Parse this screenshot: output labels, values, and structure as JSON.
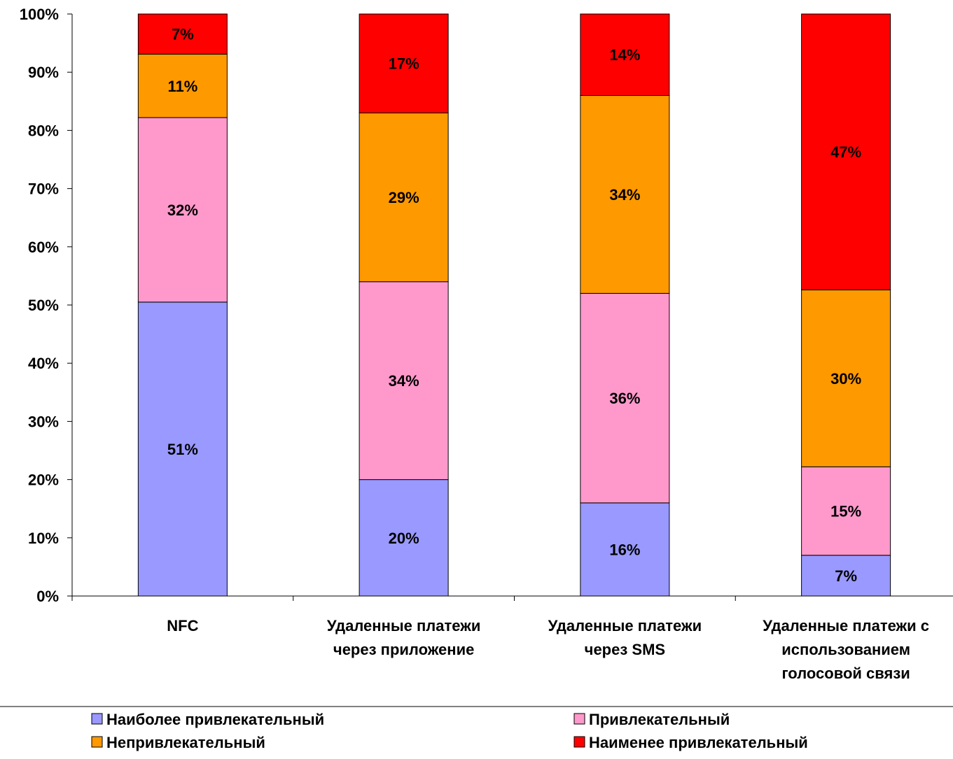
{
  "chart_data": {
    "type": "bar",
    "stacked": true,
    "percent": true,
    "categories": [
      [
        "NFC"
      ],
      [
        "Удаленные платежи",
        "через приложение"
      ],
      [
        "Удаленные платежи",
        "через SMS"
      ],
      [
        "Удаленные платежи с",
        "использованием",
        "голосовой связи"
      ]
    ],
    "series": [
      {
        "name": "Наиболее привлекательный",
        "color": "#9999ff",
        "values": [
          50.5,
          20,
          16,
          7
        ],
        "labels": [
          "51%",
          "20%",
          "16%",
          "7%"
        ]
      },
      {
        "name": "Привлекательный",
        "color": "#ff99cc",
        "values": [
          31.7,
          34,
          36,
          15.2
        ],
        "labels": [
          "32%",
          "34%",
          "36%",
          "15%"
        ]
      },
      {
        "name": "Непривлекательный",
        "color": "#ff9900",
        "values": [
          10.9,
          29,
          34,
          30.4
        ],
        "labels": [
          "11%",
          "29%",
          "34%",
          "30%"
        ]
      },
      {
        "name": "Наименее привлекательный",
        "color": "#ff0000",
        "values": [
          6.9,
          17,
          14,
          47.4
        ],
        "labels": [
          "7%",
          "17%",
          "14%",
          "47%"
        ]
      }
    ],
    "ylim": [
      0,
      100
    ],
    "yticks": [
      "0%",
      "10%",
      "20%",
      "30%",
      "40%",
      "50%",
      "60%",
      "70%",
      "80%",
      "90%",
      "100%"
    ],
    "grid": false,
    "legend_position": "bottom"
  }
}
